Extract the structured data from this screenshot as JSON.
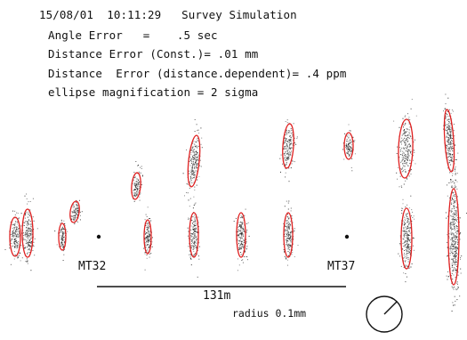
{
  "header": {
    "line1": "15/08/01  10:11:29   Survey Simulation",
    "line2": "Angle Error   =    .5 sec",
    "line3": "Distance Error (Const.)= .01 mm",
    "line4": "Distance  Error (distance.dependent)= .4 ppm",
    "line5": "ellipse magnification = 2 sigma"
  },
  "stations": [
    {
      "label": "MT32"
    },
    {
      "label": "MT37"
    }
  ],
  "scale_bar": {
    "label": "131m"
  },
  "radius_label": "radius 0.1mm",
  "colors": {
    "ellipse": "#e02020",
    "scatter": "#222222",
    "text": "#111111"
  }
}
